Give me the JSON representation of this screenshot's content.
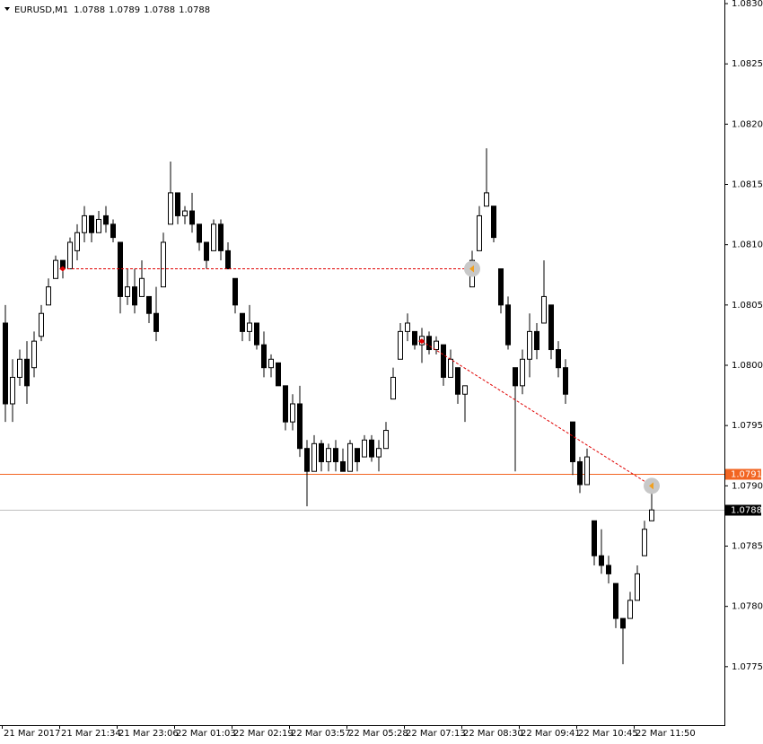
{
  "chart_data": {
    "type": "candlestick",
    "title": "EURUSD,M1",
    "ohlc": [
      1.0788,
      1.0789,
      1.0788,
      1.0788
    ],
    "categories": [
      "21 Mar 2017",
      null,
      null,
      null,
      null,
      null,
      null,
      null,
      "21 Mar 21:34",
      null,
      null,
      null,
      null,
      null,
      null,
      null,
      "21 Mar 23:06",
      null,
      null,
      null,
      null,
      null,
      null,
      null,
      "22 Mar 01:03",
      null,
      null,
      null,
      null,
      null,
      null,
      null,
      "22 Mar 02:19",
      null,
      null,
      null,
      null,
      null,
      null,
      null,
      "22 Mar 03:57",
      null,
      null,
      null,
      null,
      null,
      null,
      null,
      "22 Mar 05:28",
      null,
      null,
      null,
      null,
      null,
      null,
      null,
      "22 Mar 07:13",
      null,
      null,
      null,
      null,
      null,
      null,
      null,
      "22 Mar 08:30",
      null,
      null,
      null,
      null,
      null,
      null,
      null,
      "22 Mar 09:41",
      null,
      null,
      null,
      null,
      null,
      null,
      null,
      "22 Mar 10:45",
      null,
      null,
      null,
      null,
      null,
      null,
      null,
      "22 Mar 11:50",
      null,
      null
    ],
    "open": [
      1.08035,
      1.07968,
      1.0799,
      1.08005,
      1.07998,
      1.08024,
      1.0805,
      1.08072,
      1.08087,
      1.0808,
      1.08095,
      1.0811,
      1.08124,
      1.0811,
      1.08124,
      1.08117,
      1.08102,
      1.08057,
      1.08065,
      1.08057,
      1.08057,
      1.08043,
      1.08065,
      1.08117,
      1.08143,
      1.08124,
      1.08128,
      1.08117,
      1.08102,
      1.08095,
      1.08117,
      1.08095,
      1.08072,
      1.08043,
      1.08028,
      1.08035,
      1.08017,
      1.07998,
      1.08002,
      1.07983,
      1.07953,
      1.07968,
      1.07931,
      1.07912,
      1.07935,
      1.0792,
      1.07931,
      1.0792,
      1.07912,
      1.07931,
      1.07924,
      1.07938,
      1.07924,
      1.07931,
      1.07972,
      1.08005,
      1.08028,
      1.08028,
      1.08017,
      1.08024,
      1.08013,
      1.08017,
      1.0799,
      1.07998,
      1.07976,
      1.08065,
      1.08095,
      1.08132,
      1.08132,
      1.0808,
      1.0805,
      1.07998,
      1.07983,
      1.08005,
      1.08028,
      1.08035,
      1.0805,
      1.08013,
      1.07998,
      1.07953,
      1.0792,
      1.07901,
      1.07871,
      1.07842,
      1.07834,
      1.07819,
      1.0779,
      1.0779,
      1.07805,
      1.07842,
      1.07871
    ],
    "high": [
      1.0805,
      1.08005,
      1.08013,
      1.0802,
      1.08028,
      1.0805,
      1.08072,
      1.08091,
      1.08087,
      1.08106,
      1.08117,
      1.08132,
      1.08124,
      1.08128,
      1.08132,
      1.08121,
      1.08102,
      1.0808,
      1.0808,
      1.08087,
      1.08057,
      1.08065,
      1.0811,
      1.08169,
      1.08143,
      1.08132,
      1.08143,
      1.08117,
      1.08102,
      1.08121,
      1.08121,
      1.08102,
      1.08072,
      1.08043,
      1.0805,
      1.08035,
      1.08028,
      1.08009,
      1.08002,
      1.07983,
      1.07976,
      1.07983,
      1.07938,
      1.07942,
      1.07938,
      1.07935,
      1.07938,
      1.07931,
      1.07938,
      1.07931,
      1.07942,
      1.07942,
      1.07938,
      1.07953,
      1.07998,
      1.08035,
      1.08043,
      1.08028,
      1.08031,
      1.08028,
      1.08024,
      1.08017,
      1.08013,
      1.07998,
      1.07983,
      1.08095,
      1.08132,
      1.0818,
      1.08132,
      1.0808,
      1.08057,
      1.07998,
      1.08013,
      1.08043,
      1.08035,
      1.08087,
      1.0805,
      1.0802,
      1.08005,
      1.07953,
      1.07924,
      1.07931,
      1.07871,
      1.07864,
      1.07842,
      1.07819,
      1.0779,
      1.07812,
      1.07834,
      1.07871,
      1.07901
    ],
    "low": [
      1.07953,
      1.07953,
      1.07983,
      1.07968,
      1.0799,
      1.0802,
      1.0805,
      1.08072,
      1.08072,
      1.0808,
      1.08087,
      1.08102,
      1.08102,
      1.0811,
      1.0811,
      1.08102,
      1.08043,
      1.0805,
      1.08043,
      1.08057,
      1.08035,
      1.0802,
      1.08065,
      1.08117,
      1.08117,
      1.08117,
      1.0811,
      1.08095,
      1.0808,
      1.08095,
      1.08087,
      1.0808,
      1.08043,
      1.0802,
      1.0802,
      1.08013,
      1.0799,
      1.0799,
      1.07983,
      1.07946,
      1.07946,
      1.07924,
      1.07883,
      1.07912,
      1.07912,
      1.07912,
      1.07912,
      1.07912,
      1.07912,
      1.07912,
      1.07924,
      1.0792,
      1.07912,
      1.07931,
      1.07972,
      1.08005,
      1.0802,
      1.08013,
      1.08002,
      1.08009,
      1.08009,
      1.07983,
      1.0799,
      1.07968,
      1.07953,
      1.08065,
      1.08095,
      1.08132,
      1.08102,
      1.08043,
      1.08013,
      1.07912,
      1.07976,
      1.0799,
      1.08005,
      1.08035,
      1.08005,
      1.0799,
      1.07968,
      1.07909,
      1.07894,
      1.07901,
      1.07834,
      1.07827,
      1.07819,
      1.07782,
      1.07752,
      1.0779,
      1.07805,
      1.07842,
      1.07871
    ],
    "close": [
      1.07968,
      1.0799,
      1.08005,
      1.07983,
      1.0802,
      1.08043,
      1.08065,
      1.08087,
      1.0808,
      1.08102,
      1.0811,
      1.08124,
      1.0811,
      1.08121,
      1.08117,
      1.08106,
      1.08057,
      1.08065,
      1.0805,
      1.08072,
      1.08043,
      1.08028,
      1.08102,
      1.08143,
      1.08124,
      1.08128,
      1.08117,
      1.08102,
      1.08087,
      1.08117,
      1.08095,
      1.0808,
      1.0805,
      1.08028,
      1.08035,
      1.08017,
      1.07998,
      1.08005,
      1.07983,
      1.07953,
      1.07968,
      1.07931,
      1.07912,
      1.07935,
      1.0792,
      1.07931,
      1.0792,
      1.07912,
      1.07935,
      1.0792,
      1.07938,
      1.07924,
      1.07931,
      1.07946,
      1.0799,
      1.08028,
      1.08035,
      1.08017,
      1.08024,
      1.08013,
      1.0802,
      1.0799,
      1.08005,
      1.07976,
      1.07983,
      1.08087,
      1.08124,
      1.08143,
      1.08106,
      1.0805,
      1.08017,
      1.07983,
      1.08005,
      1.08028,
      1.08013,
      1.08057,
      1.08013,
      1.07998,
      1.07976,
      1.0792,
      1.07901,
      1.07924,
      1.07842,
      1.07834,
      1.07827,
      1.0779,
      1.07782,
      1.07805,
      1.07827,
      1.07864,
      1.0788
    ],
    "ylim": [
      1.077,
      1.083
    ],
    "yticks": [
      {
        "value": 1.083,
        "label": "1.0830"
      },
      1.0825,
      {
        "value": 1.082,
        "label": "1.0820"
      },
      1.0815,
      {
        "value": 1.081,
        "label": "1.0810"
      },
      1.0805,
      {
        "value": 1.08,
        "label": "1.0800"
      },
      1.0795,
      {
        "value": 1.079,
        "label": "1.0790"
      },
      1.0785,
      {
        "value": 1.078,
        "label": "1.0780"
      },
      1.0775
    ],
    "price_lines": [
      {
        "value": 1.0791,
        "color": "#f26522",
        "label_color": "#f26522"
      },
      {
        "value": 1.0788,
        "color": "#c0c0c0",
        "label_color": "#000000"
      }
    ],
    "trades": [
      {
        "open_bar": 8,
        "open_price": 1.0808,
        "close_bar": 65,
        "close_price": 1.0808
      },
      {
        "open_bar": 58,
        "open_price": 1.0802,
        "close_bar": 90,
        "close_price": 1.079
      }
    ],
    "bull_color": "#ffffff",
    "bear_color": "#000000",
    "trade_color": "#e00000"
  }
}
